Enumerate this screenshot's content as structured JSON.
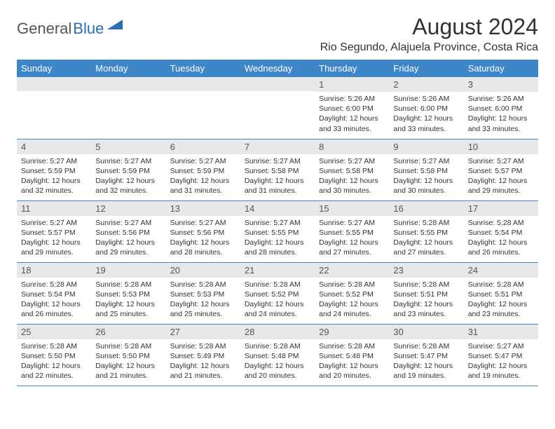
{
  "logo": {
    "text1": "General",
    "text2": "Blue"
  },
  "title": "August 2024",
  "location": "Rio Segundo, Alajuela Province, Costa Rica",
  "colors": {
    "header_bg": "#3d87c9",
    "header_text": "#ffffff",
    "daynum_bg": "#e8e8e8",
    "border": "#3d87c9",
    "logo_accent": "#2b6fb3"
  },
  "weekdays": [
    "Sunday",
    "Monday",
    "Tuesday",
    "Wednesday",
    "Thursday",
    "Friday",
    "Saturday"
  ],
  "weeks": [
    [
      {
        "day": "",
        "sunrise": "",
        "sunset": "",
        "daylight": ""
      },
      {
        "day": "",
        "sunrise": "",
        "sunset": "",
        "daylight": ""
      },
      {
        "day": "",
        "sunrise": "",
        "sunset": "",
        "daylight": ""
      },
      {
        "day": "",
        "sunrise": "",
        "sunset": "",
        "daylight": ""
      },
      {
        "day": "1",
        "sunrise": "Sunrise: 5:26 AM",
        "sunset": "Sunset: 6:00 PM",
        "daylight": "Daylight: 12 hours and 33 minutes."
      },
      {
        "day": "2",
        "sunrise": "Sunrise: 5:26 AM",
        "sunset": "Sunset: 6:00 PM",
        "daylight": "Daylight: 12 hours and 33 minutes."
      },
      {
        "day": "3",
        "sunrise": "Sunrise: 5:26 AM",
        "sunset": "Sunset: 6:00 PM",
        "daylight": "Daylight: 12 hours and 33 minutes."
      }
    ],
    [
      {
        "day": "4",
        "sunrise": "Sunrise: 5:27 AM",
        "sunset": "Sunset: 5:59 PM",
        "daylight": "Daylight: 12 hours and 32 minutes."
      },
      {
        "day": "5",
        "sunrise": "Sunrise: 5:27 AM",
        "sunset": "Sunset: 5:59 PM",
        "daylight": "Daylight: 12 hours and 32 minutes."
      },
      {
        "day": "6",
        "sunrise": "Sunrise: 5:27 AM",
        "sunset": "Sunset: 5:59 PM",
        "daylight": "Daylight: 12 hours and 31 minutes."
      },
      {
        "day": "7",
        "sunrise": "Sunrise: 5:27 AM",
        "sunset": "Sunset: 5:58 PM",
        "daylight": "Daylight: 12 hours and 31 minutes."
      },
      {
        "day": "8",
        "sunrise": "Sunrise: 5:27 AM",
        "sunset": "Sunset: 5:58 PM",
        "daylight": "Daylight: 12 hours and 30 minutes."
      },
      {
        "day": "9",
        "sunrise": "Sunrise: 5:27 AM",
        "sunset": "Sunset: 5:58 PM",
        "daylight": "Daylight: 12 hours and 30 minutes."
      },
      {
        "day": "10",
        "sunrise": "Sunrise: 5:27 AM",
        "sunset": "Sunset: 5:57 PM",
        "daylight": "Daylight: 12 hours and 29 minutes."
      }
    ],
    [
      {
        "day": "11",
        "sunrise": "Sunrise: 5:27 AM",
        "sunset": "Sunset: 5:57 PM",
        "daylight": "Daylight: 12 hours and 29 minutes."
      },
      {
        "day": "12",
        "sunrise": "Sunrise: 5:27 AM",
        "sunset": "Sunset: 5:56 PM",
        "daylight": "Daylight: 12 hours and 29 minutes."
      },
      {
        "day": "13",
        "sunrise": "Sunrise: 5:27 AM",
        "sunset": "Sunset: 5:56 PM",
        "daylight": "Daylight: 12 hours and 28 minutes."
      },
      {
        "day": "14",
        "sunrise": "Sunrise: 5:27 AM",
        "sunset": "Sunset: 5:55 PM",
        "daylight": "Daylight: 12 hours and 28 minutes."
      },
      {
        "day": "15",
        "sunrise": "Sunrise: 5:27 AM",
        "sunset": "Sunset: 5:55 PM",
        "daylight": "Daylight: 12 hours and 27 minutes."
      },
      {
        "day": "16",
        "sunrise": "Sunrise: 5:28 AM",
        "sunset": "Sunset: 5:55 PM",
        "daylight": "Daylight: 12 hours and 27 minutes."
      },
      {
        "day": "17",
        "sunrise": "Sunrise: 5:28 AM",
        "sunset": "Sunset: 5:54 PM",
        "daylight": "Daylight: 12 hours and 26 minutes."
      }
    ],
    [
      {
        "day": "18",
        "sunrise": "Sunrise: 5:28 AM",
        "sunset": "Sunset: 5:54 PM",
        "daylight": "Daylight: 12 hours and 26 minutes."
      },
      {
        "day": "19",
        "sunrise": "Sunrise: 5:28 AM",
        "sunset": "Sunset: 5:53 PM",
        "daylight": "Daylight: 12 hours and 25 minutes."
      },
      {
        "day": "20",
        "sunrise": "Sunrise: 5:28 AM",
        "sunset": "Sunset: 5:53 PM",
        "daylight": "Daylight: 12 hours and 25 minutes."
      },
      {
        "day": "21",
        "sunrise": "Sunrise: 5:28 AM",
        "sunset": "Sunset: 5:52 PM",
        "daylight": "Daylight: 12 hours and 24 minutes."
      },
      {
        "day": "22",
        "sunrise": "Sunrise: 5:28 AM",
        "sunset": "Sunset: 5:52 PM",
        "daylight": "Daylight: 12 hours and 24 minutes."
      },
      {
        "day": "23",
        "sunrise": "Sunrise: 5:28 AM",
        "sunset": "Sunset: 5:51 PM",
        "daylight": "Daylight: 12 hours and 23 minutes."
      },
      {
        "day": "24",
        "sunrise": "Sunrise: 5:28 AM",
        "sunset": "Sunset: 5:51 PM",
        "daylight": "Daylight: 12 hours and 23 minutes."
      }
    ],
    [
      {
        "day": "25",
        "sunrise": "Sunrise: 5:28 AM",
        "sunset": "Sunset: 5:50 PM",
        "daylight": "Daylight: 12 hours and 22 minutes."
      },
      {
        "day": "26",
        "sunrise": "Sunrise: 5:28 AM",
        "sunset": "Sunset: 5:50 PM",
        "daylight": "Daylight: 12 hours and 21 minutes."
      },
      {
        "day": "27",
        "sunrise": "Sunrise: 5:28 AM",
        "sunset": "Sunset: 5:49 PM",
        "daylight": "Daylight: 12 hours and 21 minutes."
      },
      {
        "day": "28",
        "sunrise": "Sunrise: 5:28 AM",
        "sunset": "Sunset: 5:48 PM",
        "daylight": "Daylight: 12 hours and 20 minutes."
      },
      {
        "day": "29",
        "sunrise": "Sunrise: 5:28 AM",
        "sunset": "Sunset: 5:48 PM",
        "daylight": "Daylight: 12 hours and 20 minutes."
      },
      {
        "day": "30",
        "sunrise": "Sunrise: 5:28 AM",
        "sunset": "Sunset: 5:47 PM",
        "daylight": "Daylight: 12 hours and 19 minutes."
      },
      {
        "day": "31",
        "sunrise": "Sunrise: 5:27 AM",
        "sunset": "Sunset: 5:47 PM",
        "daylight": "Daylight: 12 hours and 19 minutes."
      }
    ]
  ]
}
